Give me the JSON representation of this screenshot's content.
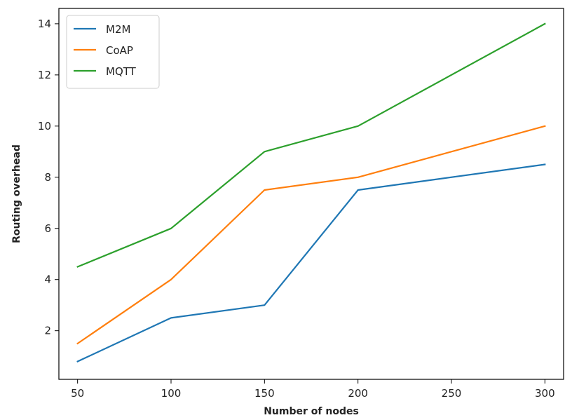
{
  "chart_data": {
    "type": "line",
    "title": "",
    "xlabel": "Number of nodes",
    "ylabel": "Routing overhead",
    "x": [
      50,
      100,
      150,
      200,
      300
    ],
    "xticks": [
      50,
      100,
      150,
      200,
      250,
      300
    ],
    "yticks": [
      2,
      4,
      6,
      8,
      10,
      12,
      14
    ],
    "xlim": [
      40,
      310
    ],
    "ylim": [
      0.1,
      14.6
    ],
    "grid": false,
    "legend_position": "top-left",
    "series": [
      {
        "name": "M2M",
        "color": "#1f77b4",
        "values": [
          0.8,
          2.5,
          3.0,
          7.5,
          8.5
        ]
      },
      {
        "name": "CoAP",
        "color": "#ff7f0e",
        "values": [
          1.5,
          4.0,
          7.5,
          8.0,
          10.0
        ]
      },
      {
        "name": "MQTT",
        "color": "#2ca02c",
        "values": [
          4.5,
          6.0,
          9.0,
          10.0,
          14.0
        ]
      }
    ]
  }
}
